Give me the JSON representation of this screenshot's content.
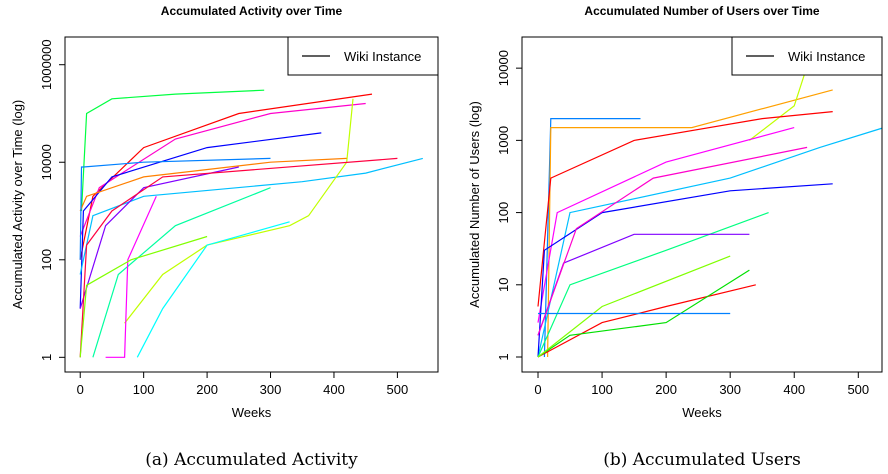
{
  "chart_data": [
    {
      "type": "line",
      "title": "Accumulated Activity over Time",
      "xlabel": "Weeks",
      "ylabel": "Accumulated Activity over Time (log)",
      "caption": "(a) Accumulated Activity",
      "log_y": true,
      "xlim": [
        -24,
        564
      ],
      "ylim": [
        0.5,
        3700000
      ],
      "xticks": [
        0,
        100,
        200,
        300,
        400,
        500
      ],
      "yticks": [
        1,
        100,
        10000,
        1000000
      ],
      "legend": {
        "label": "Wiki Instance",
        "color": "#000000",
        "position": "topright"
      },
      "series": [
        {
          "color": "#00ff40",
          "x": [
            2,
            10,
            50,
            150,
            290
          ],
          "values": [
            1000,
            100000,
            200000,
            250000,
            300000
          ]
        },
        {
          "color": "#ff0000",
          "x": [
            0,
            20,
            100,
            250,
            460
          ],
          "values": [
            100,
            2000,
            20000,
            100000,
            250000
          ]
        },
        {
          "color": "#ff00cc",
          "x": [
            0,
            30,
            150,
            300,
            450
          ],
          "values": [
            300,
            3000,
            30000,
            100000,
            160000
          ]
        },
        {
          "color": "#0000ff",
          "x": [
            0,
            5,
            50,
            200,
            380
          ],
          "values": [
            10,
            1000,
            5000,
            20000,
            40000
          ]
        },
        {
          "color": "#00bfff",
          "x": [
            0,
            20,
            100,
            350,
            450,
            540
          ],
          "values": [
            50,
            800,
            2000,
            4000,
            6000,
            12000
          ]
        },
        {
          "color": "#c0ff00",
          "x": [
            70,
            130,
            200,
            330,
            360,
            420,
            430
          ],
          "values": [
            5,
            50,
            200,
            500,
            800,
            10000,
            200000
          ]
        },
        {
          "color": "#ff8000",
          "x": [
            0,
            10,
            100,
            300,
            420
          ],
          "values": [
            1000,
            2000,
            5000,
            10000,
            12000
          ]
        },
        {
          "color": "#8000ff",
          "x": [
            0,
            40,
            100,
            250
          ],
          "values": [
            10,
            500,
            3000,
            8000
          ]
        },
        {
          "color": "#00ffa0",
          "x": [
            20,
            60,
            150,
            300
          ],
          "values": [
            1,
            50,
            500,
            3000
          ]
        },
        {
          "color": "#ff0040",
          "x": [
            0,
            10,
            50,
            130,
            500
          ],
          "values": [
            1,
            200,
            1000,
            5000,
            12000
          ]
        },
        {
          "color": "#00ffff",
          "x": [
            90,
            130,
            200,
            330
          ],
          "values": [
            1,
            10,
            200,
            600
          ]
        },
        {
          "color": "#ff00ff",
          "x": [
            40,
            70,
            75,
            120
          ],
          "values": [
            1,
            1,
            100,
            2000
          ]
        },
        {
          "color": "#80ff00",
          "x": [
            0,
            10,
            80,
            200
          ],
          "values": [
            1,
            30,
            100,
            300
          ]
        },
        {
          "color": "#0080ff",
          "x": [
            0,
            2,
            5,
            100,
            300
          ],
          "values": [
            100,
            8000,
            8000,
            10000,
            12000
          ]
        }
      ]
    },
    {
      "type": "line",
      "title": "Accumulated Number of Users over Time",
      "xlabel": "Weeks",
      "ylabel": "Accumulated Number of Users (log)",
      "caption": "(b) Accumulated Users",
      "log_y": true,
      "xlim": [
        -25,
        537
      ],
      "ylim": [
        0.62,
        27000
      ],
      "xticks": [
        0,
        100,
        200,
        300,
        400,
        500
      ],
      "yticks": [
        1,
        10,
        100,
        1000,
        10000
      ],
      "legend": {
        "label": "Wiki Instance",
        "color": "#000000",
        "position": "topright"
      },
      "series": [
        {
          "color": "#0080ff",
          "x": [
            10,
            20,
            160
          ],
          "values": [
            1,
            2000,
            2000
          ]
        },
        {
          "color": "#ffa000",
          "x": [
            15,
            20,
            240,
            460
          ],
          "values": [
            1,
            1500,
            1500,
            5000
          ]
        },
        {
          "color": "#c0ff00",
          "x": [
            330,
            400,
            430
          ],
          "values": [
            1000,
            3000,
            20000
          ]
        },
        {
          "color": "#00bfff",
          "x": [
            0,
            50,
            300,
            440,
            540
          ],
          "values": [
            1,
            100,
            300,
            800,
            1500
          ]
        },
        {
          "color": "#ff0000",
          "x": [
            0,
            20,
            150,
            350,
            460
          ],
          "values": [
            5,
            300,
            1000,
            2000,
            2500
          ]
        },
        {
          "color": "#ff00ff",
          "x": [
            0,
            30,
            200,
            400
          ],
          "values": [
            3,
            100,
            500,
            1500
          ]
        },
        {
          "color": "#0000ff",
          "x": [
            0,
            10,
            100,
            300,
            460
          ],
          "values": [
            1,
            30,
            100,
            200,
            250
          ]
        },
        {
          "color": "#00ff80",
          "x": [
            0,
            50,
            200,
            360
          ],
          "values": [
            1,
            10,
            30,
            100
          ]
        },
        {
          "color": "#ff0000",
          "x": [
            0,
            100,
            200,
            340
          ],
          "values": [
            1,
            3,
            5,
            10
          ]
        },
        {
          "color": "#00e000",
          "x": [
            0,
            50,
            200,
            330
          ],
          "values": [
            1,
            2,
            3,
            16
          ]
        },
        {
          "color": "#80ff00",
          "x": [
            0,
            100,
            300
          ],
          "values": [
            1,
            5,
            25
          ]
        },
        {
          "color": "#8000ff",
          "x": [
            0,
            40,
            150,
            330
          ],
          "values": [
            2,
            20,
            50,
            50
          ]
        },
        {
          "color": "#0080ff",
          "x": [
            0,
            300
          ],
          "values": [
            4,
            4
          ]
        },
        {
          "color": "#ff00cc",
          "x": [
            0,
            60,
            180,
            420
          ],
          "values": [
            2,
            60,
            300,
            800
          ]
        }
      ]
    }
  ]
}
